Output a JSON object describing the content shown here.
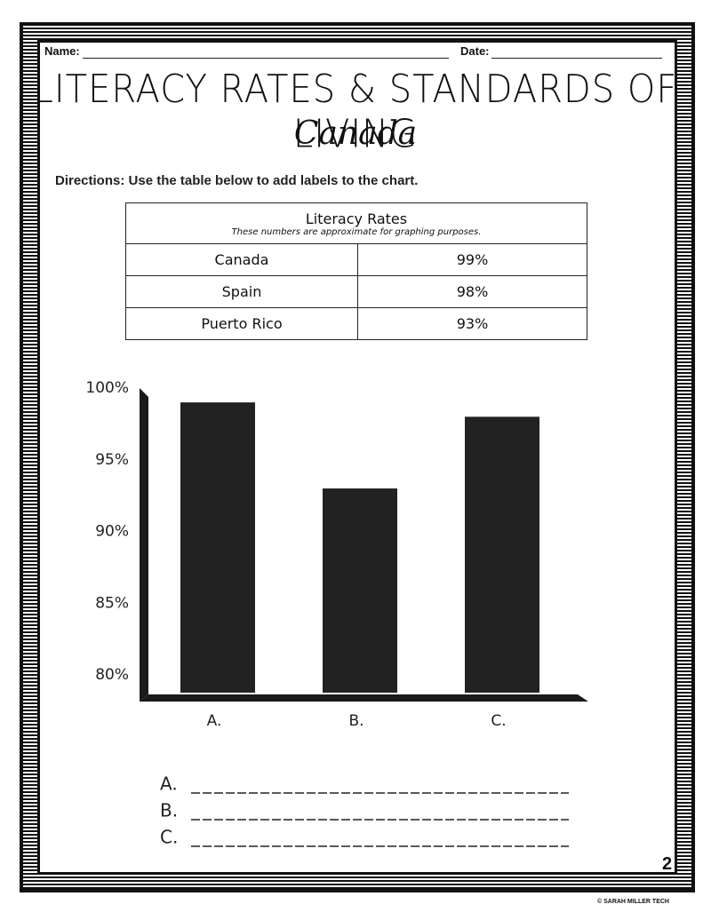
{
  "header": {
    "name_label": "Name:",
    "date_label": "Date:"
  },
  "title": "LITERACY RATES & STANDARDS OF LIVING",
  "subtitle": "Canada",
  "directions": "Directions: Use the table below to add labels to the chart.",
  "table": {
    "title": "Literacy Rates",
    "note": "These numbers are approximate for graphing purposes.",
    "rows": [
      [
        "Canada",
        "99%"
      ],
      [
        "Spain",
        "98%"
      ],
      [
        "Puerto Rico",
        "93%"
      ]
    ]
  },
  "chart_data": {
    "type": "bar",
    "categories": [
      "A.",
      "B.",
      "C."
    ],
    "values": [
      99,
      93,
      98
    ],
    "color": "#222222",
    "ylim": [
      80,
      100
    ],
    "yticks": [
      {
        "value": 80,
        "label": "80%"
      },
      {
        "value": 85,
        "label": "85%"
      },
      {
        "value": 90,
        "label": "90%"
      },
      {
        "value": 95,
        "label": "95%"
      },
      {
        "value": 100,
        "label": "100%"
      }
    ]
  },
  "answers": [
    "A.",
    "B.",
    "C."
  ],
  "page_number": "2",
  "copyright": "© SARAH MILLER TECH"
}
